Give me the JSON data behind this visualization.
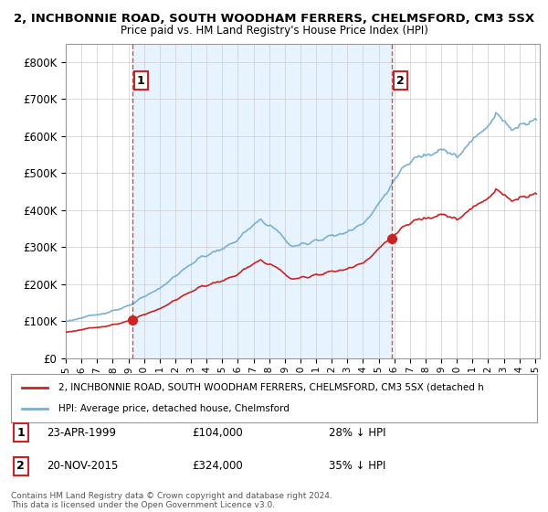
{
  "title": "2, INCHBONNIE ROAD, SOUTH WOODHAM FERRERS, CHELMSFORD, CM3 5SX",
  "subtitle": "Price paid vs. HM Land Registry's House Price Index (HPI)",
  "sale1_date": "23-APR-1999",
  "sale1_price": 104000,
  "sale1_label": "28% ↓ HPI",
  "sale2_date": "20-NOV-2015",
  "sale2_price": 324000,
  "sale2_label": "35% ↓ HPI",
  "legend_line1": "2, INCHBONNIE ROAD, SOUTH WOODHAM FERRERS, CHELMSFORD, CM3 5SX (detached h",
  "legend_line2": "HPI: Average price, detached house, Chelmsford",
  "footer": "Contains HM Land Registry data © Crown copyright and database right 2024.\nThis data is licensed under the Open Government Licence v3.0.",
  "hpi_color": "#7ab0d4",
  "price_color": "#cc2222",
  "vline_color": "#cc2222",
  "shade_color": "#ddeeff",
  "background_color": "#ffffff",
  "ylim": [
    0,
    850000
  ],
  "yticks": [
    0,
    100000,
    200000,
    300000,
    400000,
    500000,
    600000,
    700000,
    800000
  ],
  "ytick_labels": [
    "£0",
    "£100K",
    "£200K",
    "£300K",
    "£400K",
    "£500K",
    "£600K",
    "£700K",
    "£800K"
  ],
  "x_start_year": 1995.0,
  "x_end_year": 2025.3
}
